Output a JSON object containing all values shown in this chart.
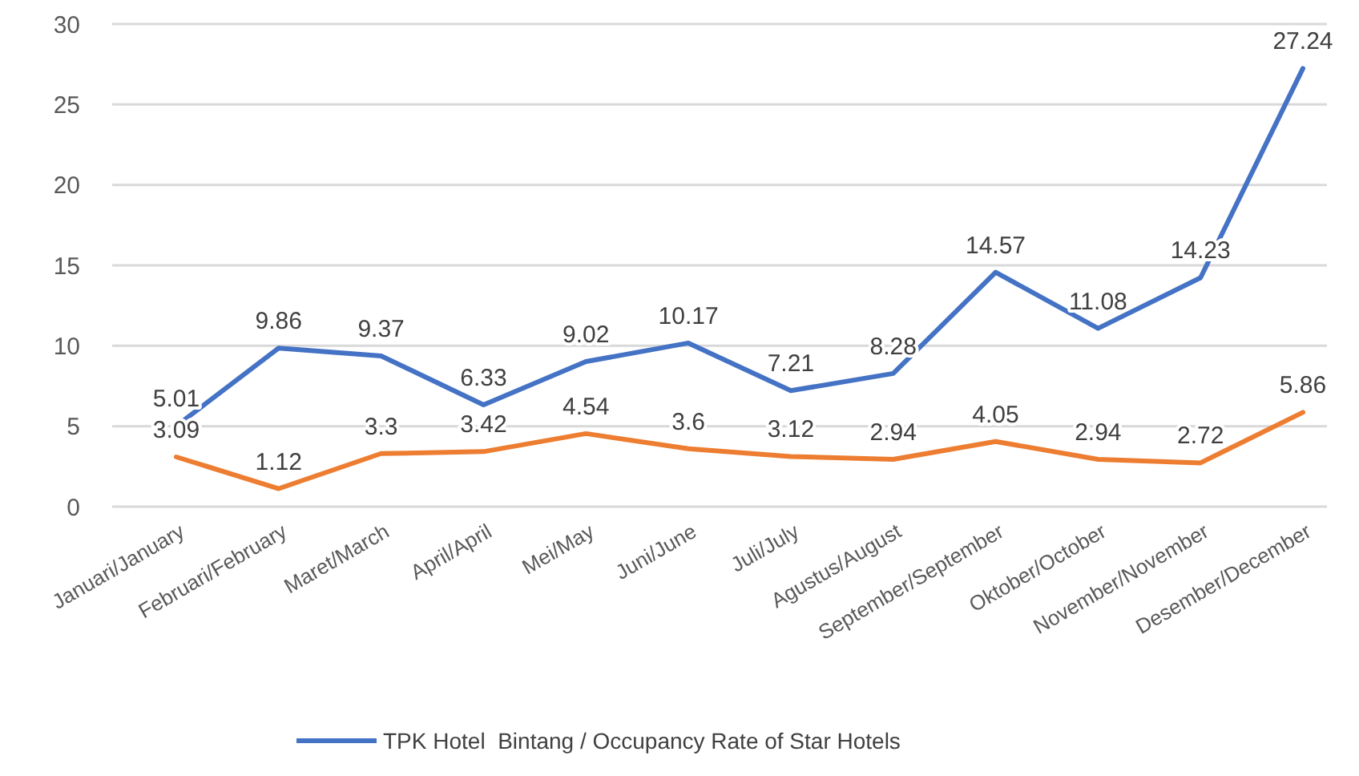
{
  "chart_data": {
    "type": "line",
    "categories": [
      "Januari/January",
      "Februari/February",
      "Maret/March",
      "April/April",
      "Mei/May",
      "Juni/June",
      "Juli/July",
      "Agustus/August",
      "September/September",
      "Oktober/October",
      "November/November",
      "Desember/December"
    ],
    "series": [
      {
        "name": "TPK Hotel  Bintang / Occupancy Rate of Star Hotels",
        "color": "#4472c4",
        "values": [
          5.01,
          9.86,
          9.37,
          6.33,
          9.02,
          10.17,
          7.21,
          8.28,
          14.57,
          11.08,
          14.23,
          27.24
        ]
      },
      {
        "color": "#ed7d31",
        "values": [
          3.09,
          1.12,
          3.3,
          3.42,
          4.54,
          3.6,
          3.12,
          2.94,
          4.05,
          2.94,
          2.72,
          5.86
        ]
      }
    ],
    "ylim": [
      0,
      30
    ],
    "yticks": [
      0,
      5,
      10,
      15,
      20,
      25,
      30
    ],
    "grid": "y",
    "data_labels": true,
    "legend": "bottom",
    "marker": "none",
    "line_style": "solid"
  }
}
